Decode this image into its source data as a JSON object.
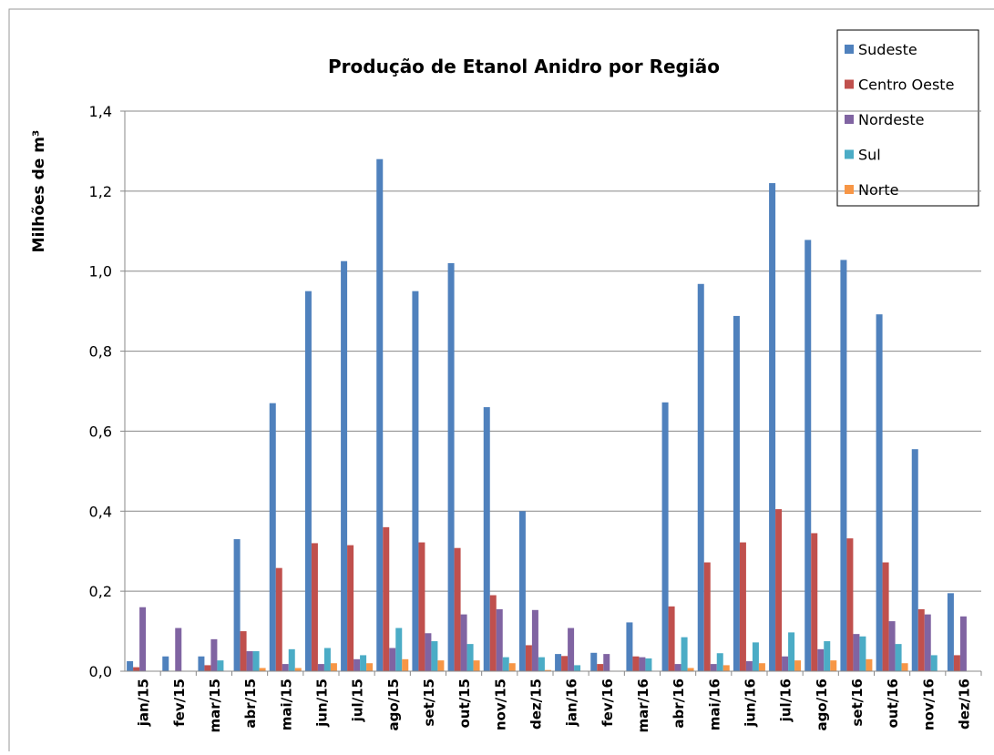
{
  "chart_data": {
    "type": "bar",
    "title": "Produção de Etanol Anidro por Região",
    "y_label": "Milhões de m³",
    "categories": [
      "jan/15",
      "fev/15",
      "mar/15",
      "abr/15",
      "mai/15",
      "jun/15",
      "jul/15",
      "ago/15",
      "set/15",
      "out/15",
      "nov/15",
      "dez/15",
      "jan/16",
      "fev/16",
      "mar/16",
      "abr/16",
      "mai/16",
      "jun/16",
      "jul/16",
      "ago/16",
      "set/16",
      "out/16",
      "nov/16",
      "dez/16"
    ],
    "series": [
      {
        "name": "Sudeste",
        "color": "#4f81bd",
        "values": [
          0.025,
          0.037,
          0.037,
          0.33,
          0.67,
          0.95,
          1.025,
          1.28,
          0.95,
          1.02,
          0.66,
          0.4,
          0.043,
          0.046,
          0.122,
          0.672,
          0.968,
          0.888,
          1.22,
          1.078,
          1.028,
          0.892,
          0.555,
          0.195
        ]
      },
      {
        "name": "Centro Oeste",
        "color": "#c0504d",
        "values": [
          0.01,
          0,
          0.015,
          0.1,
          0.258,
          0.32,
          0.315,
          0.36,
          0.322,
          0.308,
          0.19,
          0.065,
          0.038,
          0.018,
          0.037,
          0.162,
          0.272,
          0.322,
          0.405,
          0.345,
          0.332,
          0.272,
          0.155,
          0.04
        ]
      },
      {
        "name": "Nordeste",
        "color": "#8064a2",
        "values": [
          0.16,
          0.108,
          0.08,
          0.05,
          0.018,
          0.018,
          0.03,
          0.058,
          0.095,
          0.142,
          0.155,
          0.153,
          0.108,
          0.043,
          0.035,
          0.018,
          0.018,
          0.025,
          0.037,
          0.055,
          0.093,
          0.125,
          0.142,
          0.137
        ]
      },
      {
        "name": "Sul",
        "color": "#4bacc6",
        "values": [
          0,
          0,
          0.027,
          0.05,
          0.055,
          0.058,
          0.04,
          0.108,
          0.075,
          0.068,
          0.035,
          0.035,
          0.015,
          0,
          0.032,
          0.085,
          0.045,
          0.072,
          0.097,
          0.075,
          0.087,
          0.068,
          0.04,
          0
        ]
      },
      {
        "name": "Norte",
        "color": "#f79646",
        "values": [
          0,
          0,
          0,
          0.008,
          0.008,
          0.02,
          0.02,
          0.03,
          0.027,
          0.027,
          0.02,
          0.003,
          0,
          0,
          0,
          0.008,
          0.015,
          0.02,
          0.027,
          0.027,
          0.03,
          0.02,
          0,
          0
        ]
      }
    ],
    "ylim": [
      0,
      1.4
    ],
    "yticks": [
      {
        "value": 0,
        "label": "0,0"
      },
      {
        "value": 0.2,
        "label": "0,2"
      },
      {
        "value": 0.4,
        "label": "0,4"
      },
      {
        "value": 0.6,
        "label": "0,6"
      },
      {
        "value": 0.8,
        "label": "0,8"
      },
      {
        "value": 1.0,
        "label": "1,0"
      },
      {
        "value": 1.2,
        "label": "1,2"
      },
      {
        "value": 1.4,
        "label": "1,4"
      }
    ],
    "grid": true,
    "legend": "upper right"
  }
}
